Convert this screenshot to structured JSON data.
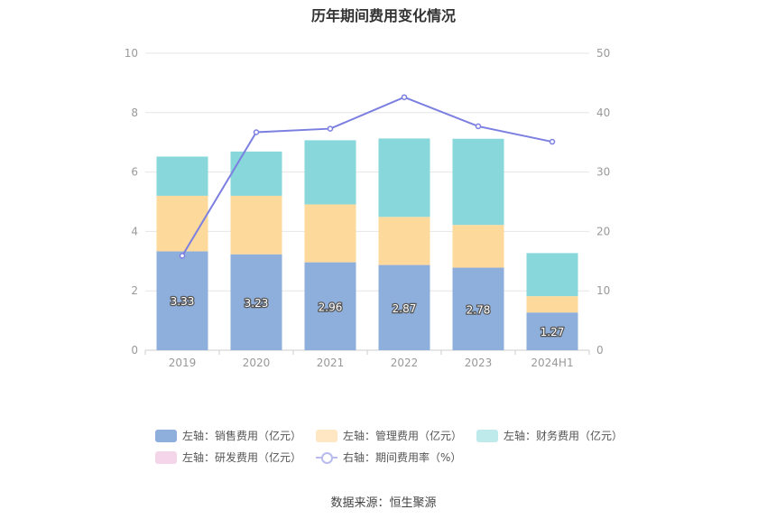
{
  "chart_data": {
    "type": "bar",
    "title": "历年期间费用变化情况",
    "categories": [
      "2019",
      "2020",
      "2021",
      "2022",
      "2023",
      "2024H1"
    ],
    "stacked": true,
    "y_left": {
      "min": 0,
      "max": 10,
      "ticks": [
        0,
        2,
        4,
        6,
        8,
        10
      ]
    },
    "y_right": {
      "min": 0,
      "max": 50,
      "ticks": [
        0,
        10,
        20,
        30,
        40,
        50
      ]
    },
    "series": [
      {
        "name": "左轴：销售费用（亿元）",
        "axis": "left",
        "kind": "bar",
        "color": "#8eaedb",
        "values": [
          3.33,
          3.23,
          2.96,
          2.87,
          2.78,
          1.27
        ],
        "show_labels": true
      },
      {
        "name": "左轴：管理费用（亿元）",
        "axis": "left",
        "kind": "bar",
        "color": "#fdd99b",
        "values": [
          1.87,
          1.97,
          1.95,
          1.62,
          1.44,
          0.55
        ],
        "show_labels": false
      },
      {
        "name": "左轴：财务费用（亿元）",
        "axis": "left",
        "kind": "bar",
        "color": "#87d7db",
        "values": [
          1.32,
          1.49,
          2.16,
          2.64,
          2.9,
          1.45
        ],
        "show_labels": false
      },
      {
        "name": "左轴：研发费用（亿元）",
        "axis": "left",
        "kind": "bar",
        "color": "#f5d5ea",
        "values": [
          0,
          0,
          0,
          0,
          0,
          0
        ],
        "show_labels": false
      },
      {
        "name": "右轴：期间费用率（%）",
        "axis": "right",
        "kind": "line",
        "color": "#7b7fe0",
        "values": [
          15.9,
          36.7,
          37.3,
          42.6,
          37.7,
          35.1
        ]
      }
    ],
    "legend_position": "bottom",
    "grid": true
  },
  "legend_swatch_colors": [
    "#8eaedb",
    "#fee7c2",
    "#bfeaec",
    "#f5d5ea",
    "#7b7fe0"
  ],
  "footer": {
    "source": "数据来源：恒生聚源"
  }
}
